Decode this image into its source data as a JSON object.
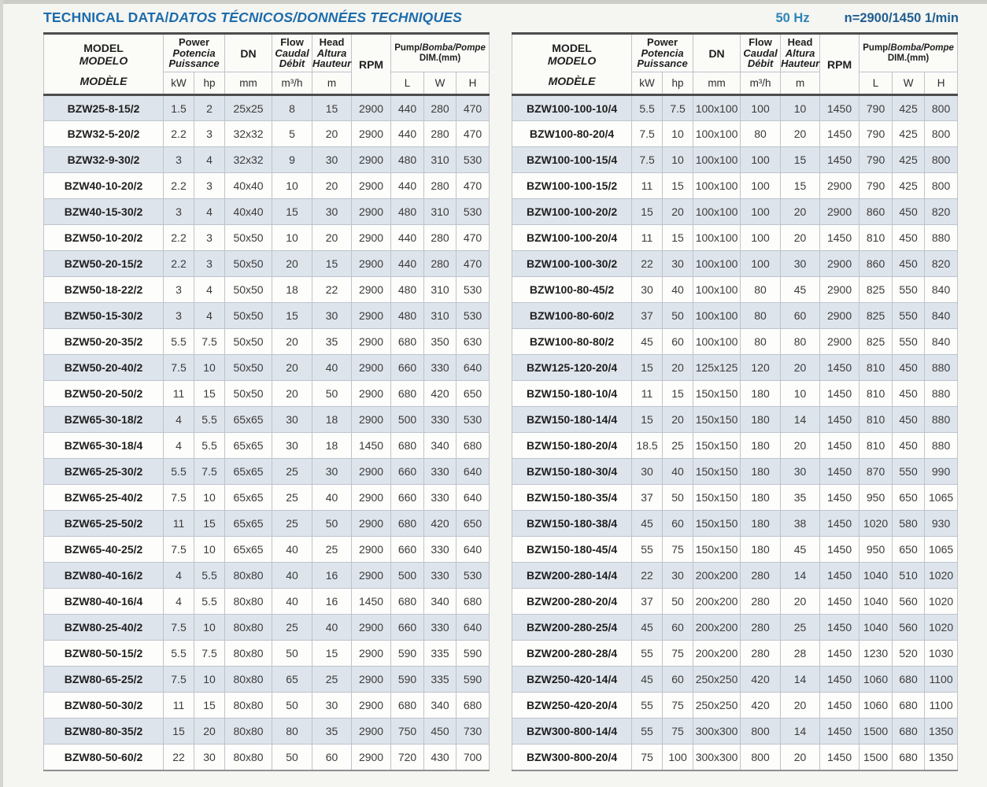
{
  "page": {
    "title_en": "TECHNICAL DATA/",
    "title_intl": "DATOS TÉCNICOS/DONNÉES TECHNIQUES",
    "frequency": "50 Hz",
    "speed": "n=2900/1450 1/min"
  },
  "colors": {
    "title-blue": "#1c6cad",
    "hz-blue": "#2d85b9",
    "speed-blue": "#1f5e92",
    "row-shaded": "#dee4eb",
    "row-plain": "#fdfdfb",
    "grid-line": "#bdc4cc",
    "rule-dark": "#4d4d4d"
  },
  "header": {
    "model": [
      "MODEL",
      "MODELO",
      "MODÈLE"
    ],
    "power": [
      "Power",
      "Potencia",
      "Puissance"
    ],
    "dn": "DN",
    "flow": [
      "Flow",
      "Caudal",
      "Débit"
    ],
    "head": [
      "Head",
      "Altura",
      "Hauteur"
    ],
    "rpm": "RPM",
    "dim_line1_en": "Pump/",
    "dim_line1_intl": "Bomba/Pompe",
    "dim_line2": "DIM.(mm)",
    "units": {
      "kw": "kW",
      "hp": "hp",
      "mm": "mm",
      "flow": "m³/h",
      "head": "m",
      "l": "L",
      "w": "W",
      "h": "H"
    }
  },
  "left_table": {
    "rows": [
      [
        "BZW25-8-15/2",
        "1.5",
        "2",
        "25x25",
        "8",
        "15",
        "2900",
        "440",
        "280",
        "470"
      ],
      [
        "BZW32-5-20/2",
        "2.2",
        "3",
        "32x32",
        "5",
        "20",
        "2900",
        "440",
        "280",
        "470"
      ],
      [
        "BZW32-9-30/2",
        "3",
        "4",
        "32x32",
        "9",
        "30",
        "2900",
        "480",
        "310",
        "530"
      ],
      [
        "BZW40-10-20/2",
        "2.2",
        "3",
        "40x40",
        "10",
        "20",
        "2900",
        "440",
        "280",
        "470"
      ],
      [
        "BZW40-15-30/2",
        "3",
        "4",
        "40x40",
        "15",
        "30",
        "2900",
        "480",
        "310",
        "530"
      ],
      [
        "BZW50-10-20/2",
        "2.2",
        "3",
        "50x50",
        "10",
        "20",
        "2900",
        "440",
        "280",
        "470"
      ],
      [
        "BZW50-20-15/2",
        "2.2",
        "3",
        "50x50",
        "20",
        "15",
        "2900",
        "440",
        "280",
        "470"
      ],
      [
        "BZW50-18-22/2",
        "3",
        "4",
        "50x50",
        "18",
        "22",
        "2900",
        "480",
        "310",
        "530"
      ],
      [
        "BZW50-15-30/2",
        "3",
        "4",
        "50x50",
        "15",
        "30",
        "2900",
        "480",
        "310",
        "530"
      ],
      [
        "BZW50-20-35/2",
        "5.5",
        "7.5",
        "50x50",
        "20",
        "35",
        "2900",
        "680",
        "350",
        "630"
      ],
      [
        "BZW50-20-40/2",
        "7.5",
        "10",
        "50x50",
        "20",
        "40",
        "2900",
        "660",
        "330",
        "640"
      ],
      [
        "BZW50-20-50/2",
        "11",
        "15",
        "50x50",
        "20",
        "50",
        "2900",
        "680",
        "420",
        "650"
      ],
      [
        "BZW65-30-18/2",
        "4",
        "5.5",
        "65x65",
        "30",
        "18",
        "2900",
        "500",
        "330",
        "530"
      ],
      [
        "BZW65-30-18/4",
        "4",
        "5.5",
        "65x65",
        "30",
        "18",
        "1450",
        "680",
        "340",
        "680"
      ],
      [
        "BZW65-25-30/2",
        "5.5",
        "7.5",
        "65x65",
        "25",
        "30",
        "2900",
        "660",
        "330",
        "640"
      ],
      [
        "BZW65-25-40/2",
        "7.5",
        "10",
        "65x65",
        "25",
        "40",
        "2900",
        "660",
        "330",
        "640"
      ],
      [
        "BZW65-25-50/2",
        "11",
        "15",
        "65x65",
        "25",
        "50",
        "2900",
        "680",
        "420",
        "650"
      ],
      [
        "BZW65-40-25/2",
        "7.5",
        "10",
        "65x65",
        "40",
        "25",
        "2900",
        "660",
        "330",
        "640"
      ],
      [
        "BZW80-40-16/2",
        "4",
        "5.5",
        "80x80",
        "40",
        "16",
        "2900",
        "500",
        "330",
        "530"
      ],
      [
        "BZW80-40-16/4",
        "4",
        "5.5",
        "80x80",
        "40",
        "16",
        "1450",
        "680",
        "340",
        "680"
      ],
      [
        "BZW80-25-40/2",
        "7.5",
        "10",
        "80x80",
        "25",
        "40",
        "2900",
        "660",
        "330",
        "640"
      ],
      [
        "BZW80-50-15/2",
        "5.5",
        "7.5",
        "80x80",
        "50",
        "15",
        "2900",
        "590",
        "335",
        "590"
      ],
      [
        "BZW80-65-25/2",
        "7.5",
        "10",
        "80x80",
        "65",
        "25",
        "2900",
        "590",
        "335",
        "590"
      ],
      [
        "BZW80-50-30/2",
        "11",
        "15",
        "80x80",
        "50",
        "30",
        "2900",
        "680",
        "340",
        "680"
      ],
      [
        "BZW80-80-35/2",
        "15",
        "20",
        "80x80",
        "80",
        "35",
        "2900",
        "750",
        "450",
        "730"
      ],
      [
        "BZW80-50-60/2",
        "22",
        "30",
        "80x80",
        "50",
        "60",
        "2900",
        "720",
        "430",
        "700"
      ]
    ]
  },
  "right_table": {
    "rows": [
      [
        "BZW100-100-10/4",
        "5.5",
        "7.5",
        "100x100",
        "100",
        "10",
        "1450",
        "790",
        "425",
        "800"
      ],
      [
        "BZW100-80-20/4",
        "7.5",
        "10",
        "100x100",
        "80",
        "20",
        "1450",
        "790",
        "425",
        "800"
      ],
      [
        "BZW100-100-15/4",
        "7.5",
        "10",
        "100x100",
        "100",
        "15",
        "1450",
        "790",
        "425",
        "800"
      ],
      [
        "BZW100-100-15/2",
        "11",
        "15",
        "100x100",
        "100",
        "15",
        "2900",
        "790",
        "425",
        "800"
      ],
      [
        "BZW100-100-20/2",
        "15",
        "20",
        "100x100",
        "100",
        "20",
        "2900",
        "860",
        "450",
        "820"
      ],
      [
        "BZW100-100-20/4",
        "11",
        "15",
        "100x100",
        "100",
        "20",
        "1450",
        "810",
        "450",
        "880"
      ],
      [
        "BZW100-100-30/2",
        "22",
        "30",
        "100x100",
        "100",
        "30",
        "2900",
        "860",
        "450",
        "820"
      ],
      [
        "BZW100-80-45/2",
        "30",
        "40",
        "100x100",
        "80",
        "45",
        "2900",
        "825",
        "550",
        "840"
      ],
      [
        "BZW100-80-60/2",
        "37",
        "50",
        "100x100",
        "80",
        "60",
        "2900",
        "825",
        "550",
        "840"
      ],
      [
        "BZW100-80-80/2",
        "45",
        "60",
        "100x100",
        "80",
        "80",
        "2900",
        "825",
        "550",
        "840"
      ],
      [
        "BZW125-120-20/4",
        "15",
        "20",
        "125x125",
        "120",
        "20",
        "1450",
        "810",
        "450",
        "880"
      ],
      [
        "BZW150-180-10/4",
        "11",
        "15",
        "150x150",
        "180",
        "10",
        "1450",
        "810",
        "450",
        "880"
      ],
      [
        "BZW150-180-14/4",
        "15",
        "20",
        "150x150",
        "180",
        "14",
        "1450",
        "810",
        "450",
        "880"
      ],
      [
        "BZW150-180-20/4",
        "18.5",
        "25",
        "150x150",
        "180",
        "20",
        "1450",
        "810",
        "450",
        "880"
      ],
      [
        "BZW150-180-30/4",
        "30",
        "40",
        "150x150",
        "180",
        "30",
        "1450",
        "870",
        "550",
        "990"
      ],
      [
        "BZW150-180-35/4",
        "37",
        "50",
        "150x150",
        "180",
        "35",
        "1450",
        "950",
        "650",
        "1065"
      ],
      [
        "BZW150-180-38/4",
        "45",
        "60",
        "150x150",
        "180",
        "38",
        "1450",
        "1020",
        "580",
        "930"
      ],
      [
        "BZW150-180-45/4",
        "55",
        "75",
        "150x150",
        "180",
        "45",
        "1450",
        "950",
        "650",
        "1065"
      ],
      [
        "BZW200-280-14/4",
        "22",
        "30",
        "200x200",
        "280",
        "14",
        "1450",
        "1040",
        "510",
        "1020"
      ],
      [
        "BZW200-280-20/4",
        "37",
        "50",
        "200x200",
        "280",
        "20",
        "1450",
        "1040",
        "560",
        "1020"
      ],
      [
        "BZW200-280-25/4",
        "45",
        "60",
        "200x200",
        "280",
        "25",
        "1450",
        "1040",
        "560",
        "1020"
      ],
      [
        "BZW200-280-28/4",
        "55",
        "75",
        "200x200",
        "280",
        "28",
        "1450",
        "1230",
        "520",
        "1030"
      ],
      [
        "BZW250-420-14/4",
        "45",
        "60",
        "250x250",
        "420",
        "14",
        "1450",
        "1060",
        "680",
        "1100"
      ],
      [
        "BZW250-420-20/4",
        "55",
        "75",
        "250x250",
        "420",
        "20",
        "1450",
        "1060",
        "680",
        "1100"
      ],
      [
        "BZW300-800-14/4",
        "55",
        "75",
        "300x300",
        "800",
        "14",
        "1450",
        "1500",
        "680",
        "1350"
      ],
      [
        "BZW300-800-20/4",
        "75",
        "100",
        "300x300",
        "800",
        "20",
        "1450",
        "1500",
        "680",
        "1350"
      ]
    ]
  }
}
